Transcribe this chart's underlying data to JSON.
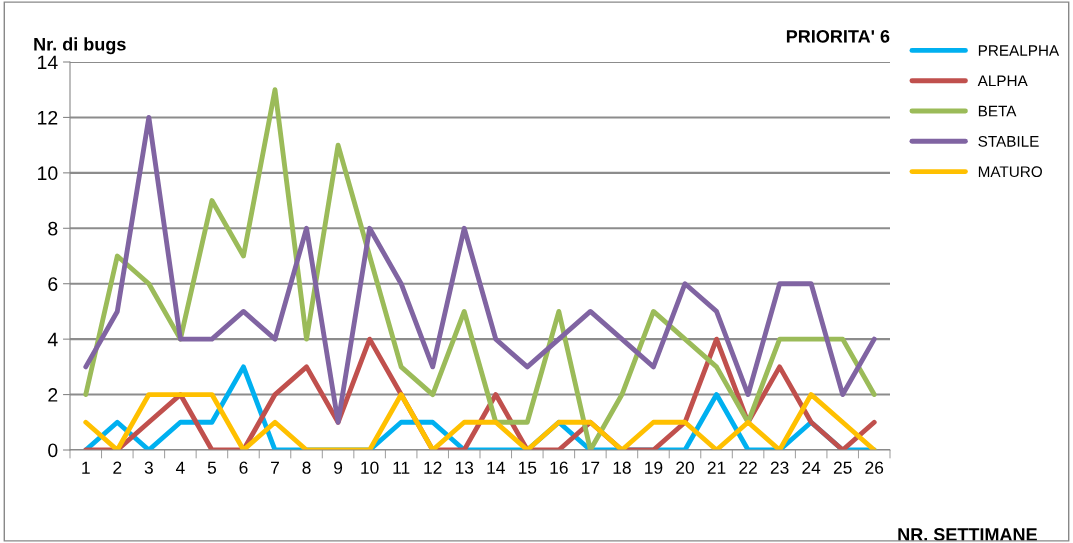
{
  "chart_data": {
    "type": "line",
    "title": "PRIORITA' 6",
    "xlabel": "NR. SETTIMANE",
    "ylabel": "Nr. di bugs",
    "categories": [
      "1",
      "2",
      "3",
      "4",
      "5",
      "6",
      "7",
      "8",
      "9",
      "10",
      "11",
      "12",
      "13",
      "14",
      "15",
      "16",
      "17",
      "18",
      "19",
      "20",
      "21",
      "22",
      "23",
      "24",
      "25",
      "26"
    ],
    "series": [
      {
        "name": "PREALPHA",
        "color": "#00b0f0",
        "values": [
          0,
          1,
          0,
          1,
          1,
          3,
          0,
          0,
          0,
          0,
          1,
          1,
          0,
          0,
          0,
          1,
          0,
          0,
          0,
          0,
          2,
          0,
          0,
          1,
          0,
          0
        ]
      },
      {
        "name": "ALPHA",
        "color": "#c0504d",
        "values": [
          0,
          0,
          1,
          2,
          0,
          0,
          2,
          3,
          1,
          4,
          2,
          0,
          0,
          2,
          0,
          0,
          1,
          0,
          0,
          1,
          4,
          1,
          3,
          1,
          0,
          1
        ]
      },
      {
        "name": "BETA",
        "color": "#9bbb59",
        "values": [
          2,
          7,
          6,
          4,
          9,
          7,
          13,
          4,
          11,
          7,
          3,
          2,
          5,
          1,
          1,
          5,
          0,
          2,
          5,
          4,
          3,
          1,
          4,
          4,
          4,
          2
        ]
      },
      {
        "name": "STABILE",
        "color": "#8064a2",
        "values": [
          3,
          5,
          12,
          4,
          4,
          5,
          4,
          8,
          1,
          8,
          6,
          3,
          8,
          4,
          3,
          4,
          5,
          4,
          3,
          6,
          5,
          2,
          6,
          6,
          2,
          4
        ]
      },
      {
        "name": "MATURO",
        "color": "#ffc000",
        "values": [
          1,
          0,
          2,
          2,
          2,
          0,
          1,
          0,
          0,
          0,
          2,
          0,
          1,
          1,
          0,
          1,
          1,
          0,
          1,
          1,
          0,
          1,
          0,
          2,
          1,
          0
        ]
      }
    ],
    "ylim": [
      0,
      14
    ],
    "yticks": [
      0,
      2,
      4,
      6,
      8,
      10,
      12,
      14
    ],
    "grid": "y",
    "legend": "right",
    "marker": "none",
    "line_style": "solid"
  }
}
